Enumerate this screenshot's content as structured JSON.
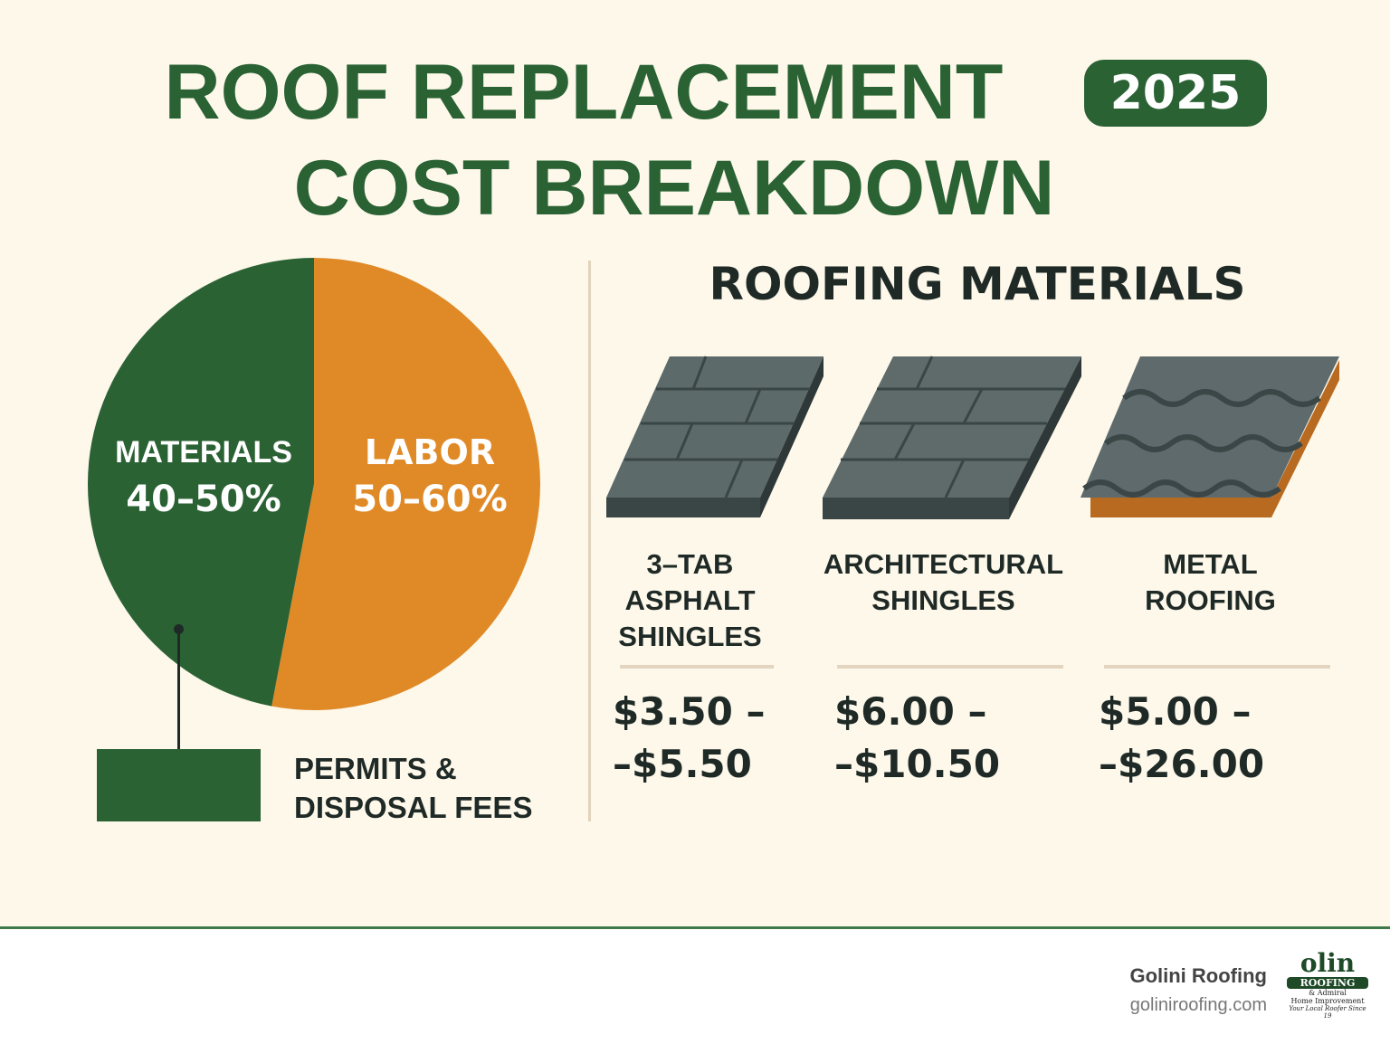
{
  "header": {
    "title_line1": "ROOF REPLACEMENT",
    "title_line2": "COST BREAKDOWN",
    "year": "2025"
  },
  "colors": {
    "green": "#2a6234",
    "orange": "#e08a27",
    "background": "#fdf8ea"
  },
  "chart_data": {
    "type": "pie",
    "categories": [
      "MATERIALS",
      "LABOR"
    ],
    "ranges": [
      "40–50%",
      "50–60%"
    ],
    "values": [
      47,
      53
    ],
    "colors": [
      "#2a6234",
      "#e08a27"
    ],
    "legend": {
      "label_line1": "PERMITS &",
      "label_line2": "DISPOSAL FEES",
      "color": "#2a6234"
    }
  },
  "materials": {
    "heading": "ROOFING MATERIALS",
    "items": [
      {
        "name": [
          "3–TAB",
          "ASPHALT",
          "SHINGLES"
        ],
        "price": [
          "$3.50 –",
          "–$5.50"
        ],
        "icon": "three-tab-shingle-icon"
      },
      {
        "name": [
          "ARCHITECTURAL",
          "SHINGLES"
        ],
        "price": [
          "$6.00 –",
          "–$10.50"
        ],
        "icon": "architectural-shingle-icon"
      },
      {
        "name": [
          "METAL",
          "ROOFING"
        ],
        "price": [
          "$5.00 –",
          "–$26.00"
        ],
        "icon": "metal-roof-icon"
      }
    ]
  },
  "footer": {
    "company": "Golini Roofing",
    "website": "goliniroofing.com",
    "logo_text": "Golini ROOFING & Admiral Home Improvement Your Local Roofer Since 19"
  }
}
